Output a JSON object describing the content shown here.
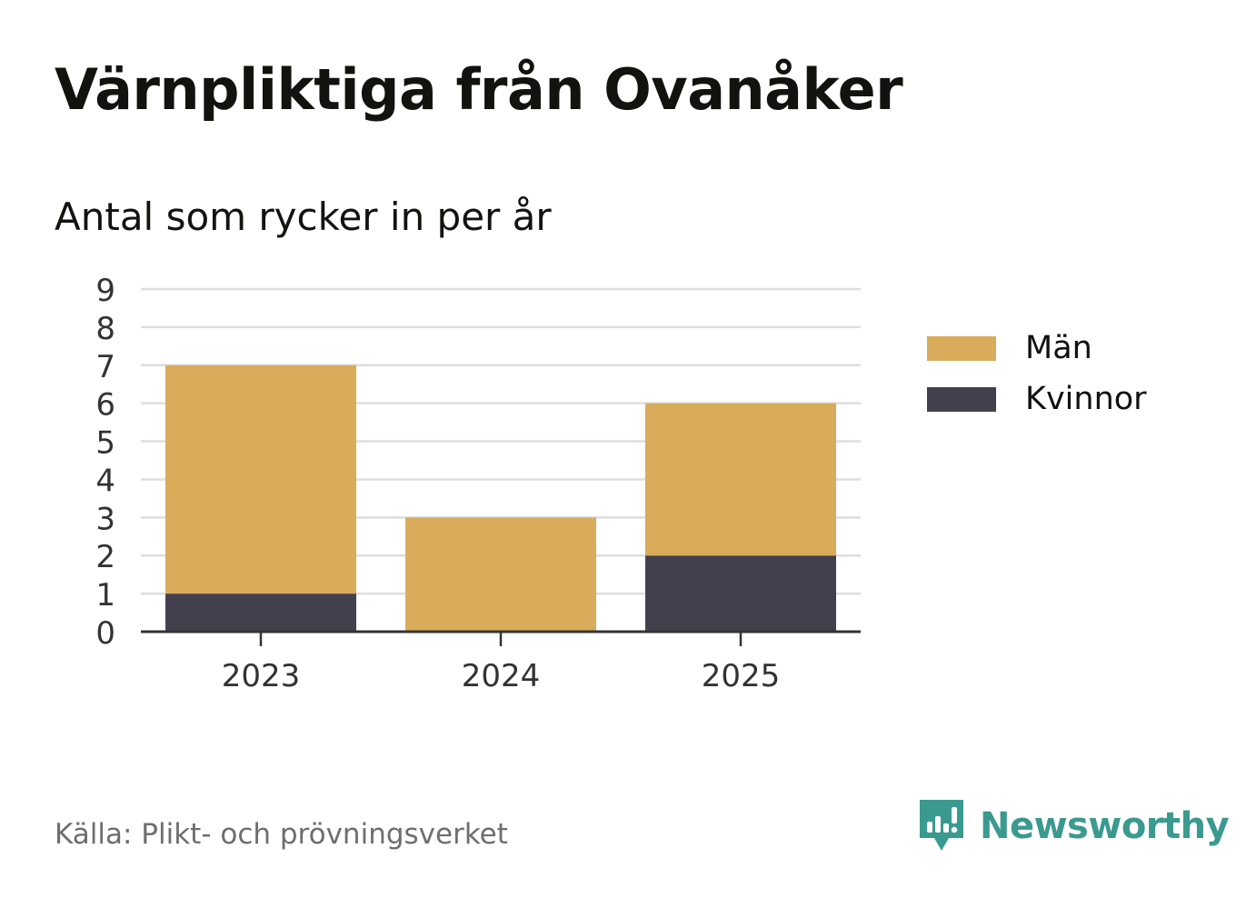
{
  "title": "Värnpliktiga från Ovanåker",
  "subtitle": "Antal som rycker in per år",
  "source": "Källa: Plikt- och prövningsverket",
  "brand": {
    "name": "Newsworthy",
    "icon": "newsworthy-logo-icon",
    "color": "#3a9a8f"
  },
  "legend": [
    {
      "label": "Män",
      "color": "#d9ac5b"
    },
    {
      "label": "Kvinnor",
      "color": "#43404e"
    }
  ],
  "chart_data": {
    "type": "bar",
    "stacked": true,
    "categories": [
      "2023",
      "2024",
      "2025"
    ],
    "series": [
      {
        "name": "Kvinnor",
        "values": [
          1,
          0,
          2
        ],
        "color": "#43404e"
      },
      {
        "name": "Män",
        "values": [
          6,
          3,
          4
        ],
        "color": "#d9ac5b"
      }
    ],
    "ylim": [
      0,
      9
    ],
    "yticks": [
      "0",
      "1",
      "2",
      "3",
      "4",
      "5",
      "6",
      "7",
      "8",
      "9"
    ],
    "grid": true,
    "legend_position": "right"
  }
}
